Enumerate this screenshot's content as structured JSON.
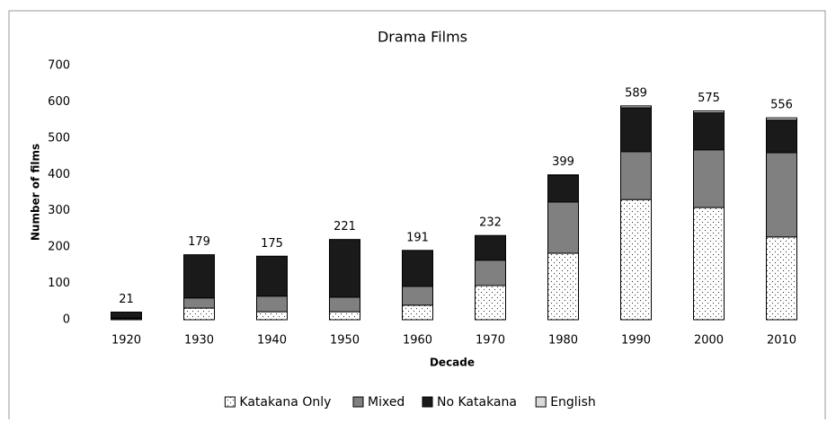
{
  "chart_data": {
    "type": "stacked_bar",
    "title": "Drama Films",
    "x_label": "Decade",
    "y_label": "Number of films",
    "categories": [
      "1920",
      "1930",
      "1940",
      "1950",
      "1960",
      "1970",
      "1980",
      "1990",
      "2000",
      "2010"
    ],
    "series": [
      {
        "name": "Katakana Only",
        "color": "#ffffff",
        "values": [
          3,
          32,
          22,
          22,
          40,
          94,
          183,
          331,
          309,
          228
        ]
      },
      {
        "name": "Mixed",
        "color": "#808080",
        "values": [
          2,
          28,
          43,
          40,
          52,
          70,
          141,
          132,
          159,
          232
        ]
      },
      {
        "name": "No Katakana",
        "color": "#1a1a1a",
        "values": [
          16,
          119,
          110,
          159,
          99,
          68,
          73,
          121,
          102,
          90
        ]
      },
      {
        "name": "English",
        "color": "#d9d9d9",
        "values": [
          0,
          0,
          0,
          0,
          0,
          0,
          2,
          5,
          5,
          6
        ]
      }
    ],
    "totals": [
      21,
      179,
      175,
      221,
      191,
      232,
      399,
      589,
      575,
      556
    ],
    "ylim": [
      0,
      700
    ],
    "yticks": [
      0,
      100,
      200,
      300,
      400,
      500,
      600,
      700
    ],
    "grid": false
  }
}
